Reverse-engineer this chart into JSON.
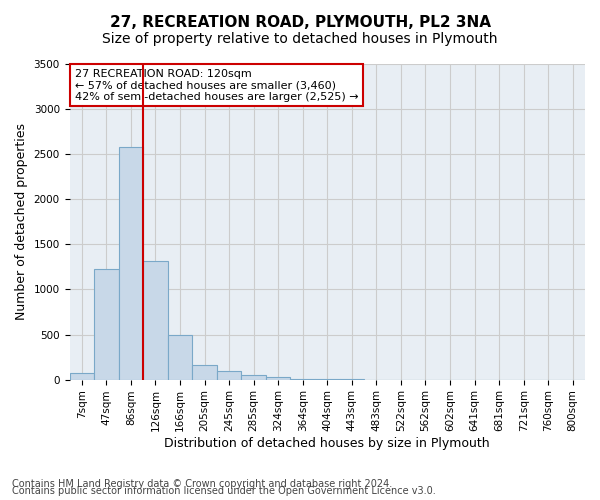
{
  "title": "27, RECREATION ROAD, PLYMOUTH, PL2 3NA",
  "subtitle": "Size of property relative to detached houses in Plymouth",
  "xlabel": "Distribution of detached houses by size in Plymouth",
  "ylabel": "Number of detached properties",
  "footnote1": "Contains HM Land Registry data © Crown copyright and database right 2024.",
  "footnote2": "Contains public sector information licensed under the Open Government Licence v3.0.",
  "annotation_line1": "27 RECREATION ROAD: 120sqm",
  "annotation_line2": "← 57% of detached houses are smaller (3,460)",
  "annotation_line3": "42% of semi-detached houses are larger (2,525) →",
  "bin_labels": [
    "7sqm",
    "47sqm",
    "86sqm",
    "126sqm",
    "166sqm",
    "205sqm",
    "245sqm",
    "285sqm",
    "324sqm",
    "364sqm",
    "404sqm",
    "443sqm",
    "483sqm",
    "522sqm",
    "562sqm",
    "602sqm",
    "641sqm",
    "681sqm",
    "721sqm",
    "760sqm",
    "800sqm"
  ],
  "bar_values": [
    75,
    1225,
    2575,
    1310,
    490,
    165,
    95,
    55,
    25,
    10,
    5,
    2,
    1,
    0,
    0,
    0,
    0,
    0,
    0,
    0,
    0
  ],
  "bar_color": "#c8d8e8",
  "bar_edge_color": "#7aa8c8",
  "vline_color": "#cc0000",
  "vline_x_idx": 2.5,
  "ylim": [
    0,
    3500
  ],
  "yticks": [
    0,
    500,
    1000,
    1500,
    2000,
    2500,
    3000,
    3500
  ],
  "grid_color": "#cccccc",
  "bg_color": "#e8eef4",
  "annotation_box_color": "#cc0000",
  "title_fontsize": 11,
  "subtitle_fontsize": 10,
  "axis_label_fontsize": 9,
  "tick_fontsize": 7.5,
  "annotation_fontsize": 8,
  "footnote_fontsize": 7
}
